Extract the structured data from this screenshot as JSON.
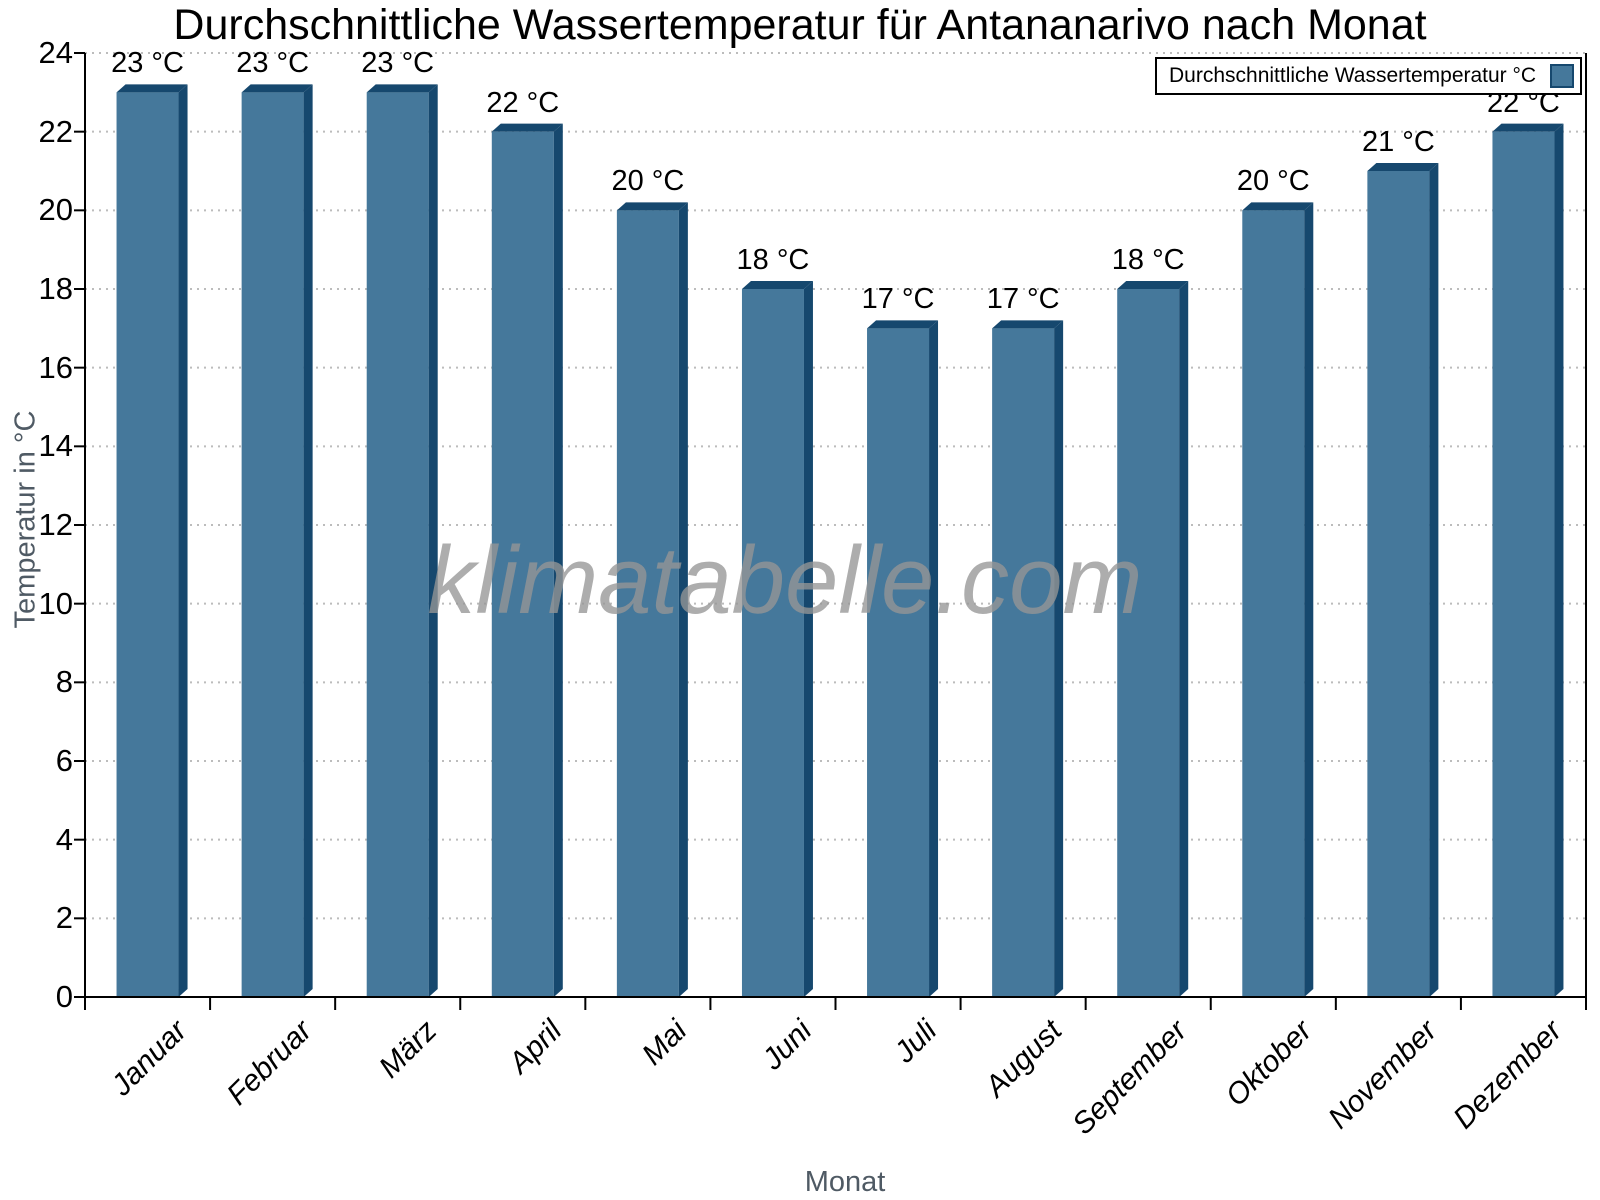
{
  "watermark": "klimatabelle.com",
  "legend": {
    "label": "Durchschnittliche Wassertemperatur °C"
  },
  "colors": {
    "bar_fill": "#45789B",
    "bar_edge": "#16486E",
    "grid": "#bcbcbc",
    "axis": "#000000",
    "muted_text": "#4f5a64",
    "watermark_gray": "#969696"
  },
  "chart_data": {
    "type": "bar",
    "title": "Durchschnittliche Wassertemperatur für Antananarivo nach Monat",
    "categories": [
      "Januar",
      "Februar",
      "März",
      "April",
      "Mai",
      "Juni",
      "Juli",
      "August",
      "September",
      "Oktober",
      "November",
      "Dezember"
    ],
    "series": [
      {
        "name": "Durchschnittliche Wassertemperatur °C",
        "values": [
          23,
          23,
          23,
          22,
          20,
          18,
          17,
          17,
          18,
          20,
          21,
          22
        ]
      }
    ],
    "value_labels": [
      "23 °C",
      "23 °C",
      "23 °C",
      "22 °C",
      "20 °C",
      "18 °C",
      "17 °C",
      "17 °C",
      "18 °C",
      "20 °C",
      "21 °C",
      "22 °C"
    ],
    "value_suffix": " °C",
    "xlabel": "Monat",
    "ylabel": "Temperatur in °C",
    "ylim": [
      0,
      24
    ],
    "ytick_step": 2,
    "yticks": [
      0,
      2,
      4,
      6,
      8,
      10,
      12,
      14,
      16,
      18,
      20,
      22,
      24
    ],
    "grid": "dotted-horizontal",
    "legend_position": "top-right",
    "bar_style": "3d"
  }
}
